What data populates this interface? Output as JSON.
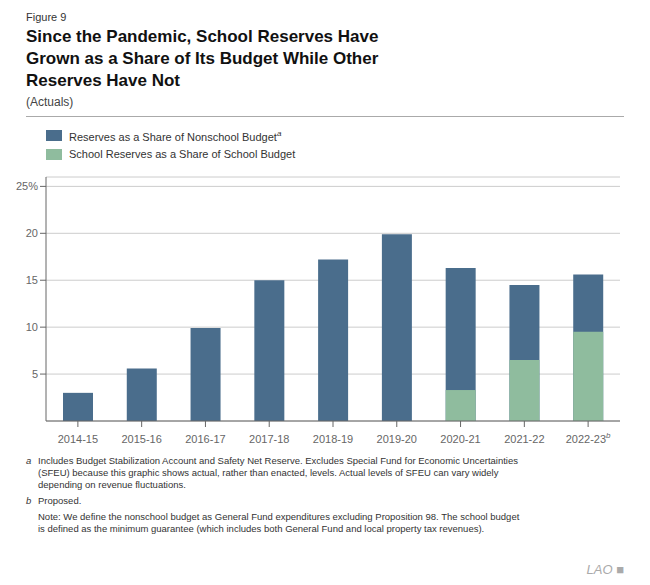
{
  "chart_data": {
    "type": "bar",
    "title": "Since the Pandemic, School Reserves Have\nGrown as a Share of Its Budget While Other\nReserves Have Not",
    "subtitle": "(Actuals)",
    "categories": [
      "2014-15",
      "2015-16",
      "2016-17",
      "2017-18",
      "2018-19",
      "2019-20",
      "2020-21",
      "2021-22",
      "2022-23"
    ],
    "category_notes": [
      null,
      null,
      null,
      null,
      null,
      null,
      null,
      null,
      "b"
    ],
    "series": [
      {
        "name": "Reserves as a Share of Nonschool Budget",
        "note": "a",
        "color": "#4a6d8c",
        "values": [
          3.0,
          5.6,
          9.9,
          15.0,
          17.2,
          19.9,
          16.3,
          14.5,
          15.6
        ]
      },
      {
        "name": "School Reserves as a Share of School Budget",
        "color": "#8fbc9e",
        "values": [
          null,
          null,
          null,
          null,
          null,
          null,
          3.3,
          6.5,
          9.5
        ]
      }
    ],
    "ylim": [
      0,
      26
    ],
    "yticks": [
      5,
      10,
      15,
      20,
      {
        "value": 25,
        "label": "25%"
      }
    ],
    "grid": true,
    "legend": "upper left",
    "annotations": [
      "Figure 9",
      "LAO ■"
    ],
    "footnotes": [
      {
        "label": "a",
        "text": "Includes Budget Stabilization Account and Safety Net Reserve. Excludes Special Fund for Economic Uncertainties\n(SFEU) because this graphic shows actual, rather than enacted, levels. Actual levels of SFEU can vary widely\ndepending on revenue fluctuations."
      },
      {
        "label": "b",
        "text": "Proposed."
      }
    ],
    "note": "Note: We define the nonschool budget as General Fund expenditures excluding Proposition 98. The school budget\nis defined as the minimum guarantee (which includes both General Fund and local property tax revenues)."
  }
}
